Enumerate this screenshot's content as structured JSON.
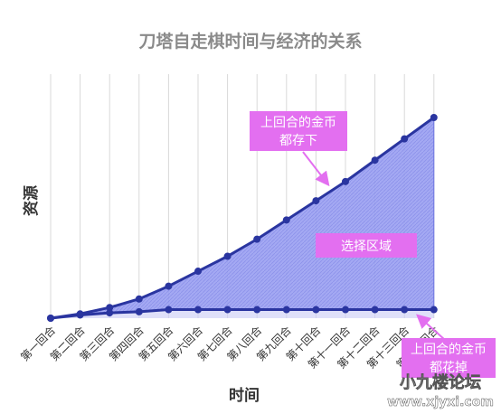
{
  "chart_data": {
    "type": "area",
    "title": "刀塔自走棋时间与经济的关系",
    "xlabel": "时间",
    "ylabel": "资源",
    "categories": [
      "第一回合",
      "第二回合",
      "第三回合",
      "第四回合",
      "第五回合",
      "第六回合",
      "第七回合",
      "第八回合",
      "第九回合",
      "第十回合",
      "第十一回合",
      "第十二回合",
      "第十三回合",
      "第十四回合"
    ],
    "series": [
      {
        "values": [
          0.0,
          0.2,
          0.5,
          0.9,
          1.5,
          2.2,
          2.9,
          3.7,
          4.6,
          5.5,
          6.4,
          7.4,
          8.4,
          9.4
        ]
      },
      {
        "values": [
          0.0,
          0.15,
          0.25,
          0.3,
          0.4,
          0.4,
          0.4,
          0.4,
          0.4,
          0.4,
          0.4,
          0.4,
          0.4,
          0.4
        ]
      }
    ],
    "ylim": [
      0,
      10
    ],
    "grid": true,
    "annotations": [
      {
        "text_line1": "上回合的金币",
        "text_line2": "都存下"
      },
      {
        "text": "选择区域"
      },
      {
        "text_line1": "上回合的金币",
        "text_line2": "都花掉"
      }
    ],
    "colors": {
      "line": "#2a35a0",
      "fill": "#8f95ee",
      "callout": "#e36ff0",
      "grid": "#d9d9d9",
      "arrow": "#e36ff0"
    }
  },
  "watermark": {
    "line1": "小九楼论坛",
    "line2": "www.xjyxi.com"
  }
}
